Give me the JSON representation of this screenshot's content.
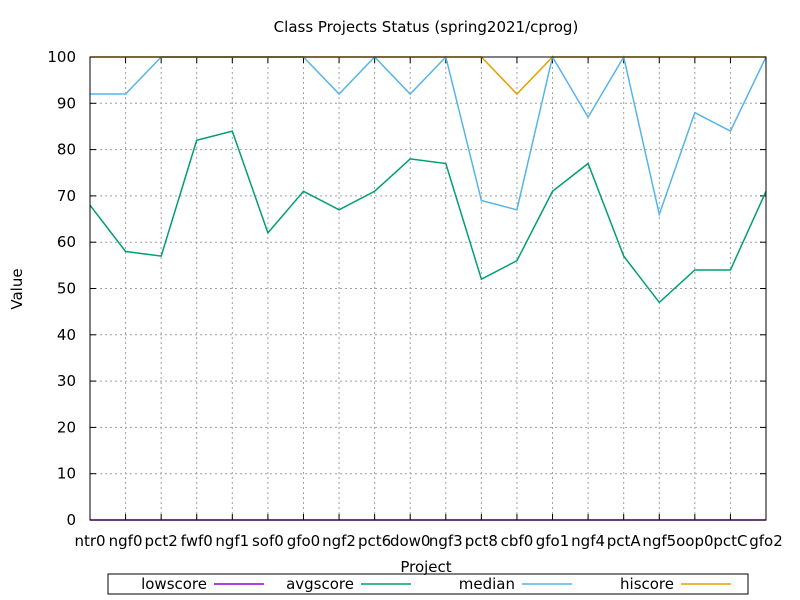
{
  "chart_data": {
    "type": "line",
    "title": "Class Projects Status (spring2021/cprog)",
    "xlabel": "Project",
    "ylabel": "Value",
    "ylim": [
      0,
      100
    ],
    "yticks": [
      0,
      10,
      20,
      30,
      40,
      50,
      60,
      70,
      80,
      90,
      100
    ],
    "grid": true,
    "legend_position": "bottom",
    "categories": [
      "ntr0",
      "ngf0",
      "pct2",
      "fwf0",
      "ngf1",
      "sof0",
      "gfo0",
      "ngf2",
      "pct6",
      "dow0",
      "ngf3",
      "pct8",
      "cbf0",
      "gfo1",
      "ngf4",
      "pctA",
      "ngf5",
      "oop0",
      "pctC",
      "gfo2"
    ],
    "series": [
      {
        "name": "lowscore",
        "color": "#9400d3",
        "values": [
          0,
          0,
          0,
          0,
          0,
          0,
          0,
          0,
          0,
          0,
          0,
          0,
          0,
          0,
          0,
          0,
          0,
          0,
          0,
          0
        ]
      },
      {
        "name": "avgscore",
        "color": "#009e73",
        "values": [
          68,
          58,
          57,
          82,
          84,
          62,
          71,
          67,
          71,
          78,
          77,
          52,
          56,
          71,
          77,
          57,
          47,
          54,
          54,
          71
        ]
      },
      {
        "name": "median",
        "color": "#56b4e9",
        "values": [
          92,
          92,
          100,
          100,
          100,
          100,
          100,
          92,
          100,
          92,
          100,
          69,
          67,
          100,
          87,
          100,
          66,
          88,
          84,
          100
        ]
      },
      {
        "name": "hiscore",
        "color": "#e69f00",
        "values": [
          100,
          100,
          100,
          100,
          100,
          100,
          100,
          100,
          100,
          100,
          100,
          100,
          92,
          100,
          100,
          100,
          100,
          100,
          100,
          100
        ]
      }
    ]
  }
}
